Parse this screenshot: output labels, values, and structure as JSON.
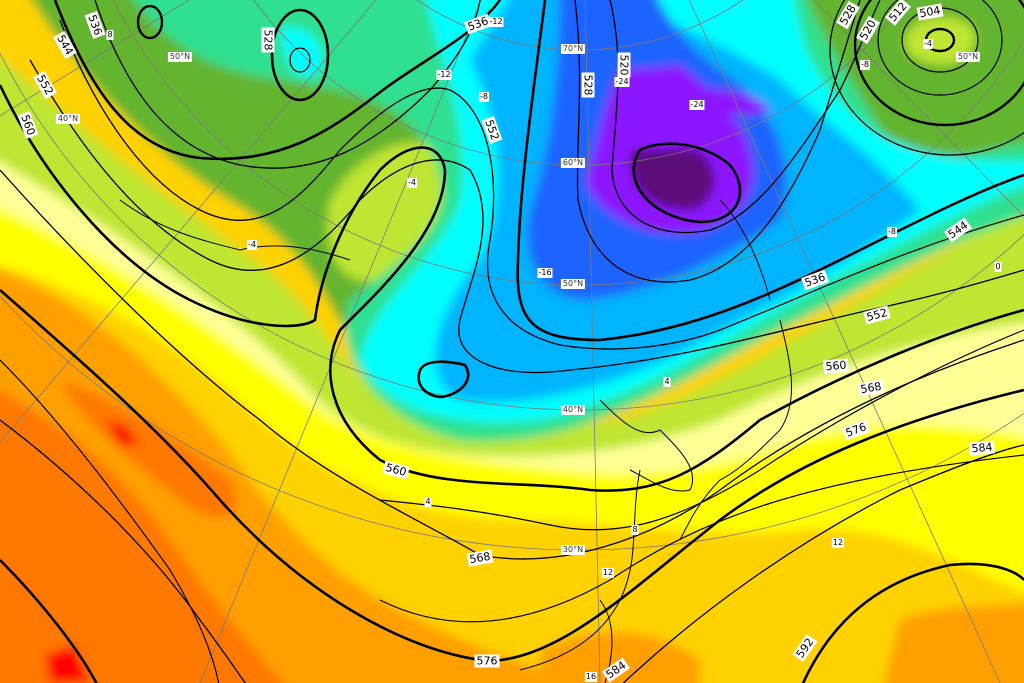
{
  "colors": {
    "dark_purple": "#5c0a78",
    "purple": "#8c14ff",
    "blue": "#1e64ff",
    "light_blue": "#00b4ff",
    "cyan": "#00ffff",
    "sea_green": "#2ee08f",
    "green": "#64b42d",
    "yellow_green": "#bee632",
    "light_yellow": "#ffff96",
    "yellow": "#ffff00",
    "gold": "#ffd200",
    "orange": "#ffa000",
    "dark_orange": "#ff7800",
    "red": "#ff0000",
    "contour": "#000000",
    "graticule": "#7a7a7a"
  },
  "height_labels": [
    "528",
    "536",
    "544",
    "552",
    "560",
    "536",
    "552",
    "528",
    "520",
    "528",
    "520",
    "512",
    "504",
    "544",
    "536",
    "552",
    "560",
    "568",
    "576",
    "584",
    "592",
    "560",
    "568",
    "576",
    "584"
  ],
  "temperature_labels": [
    "-12",
    "-12",
    "-8",
    "-24",
    "-24",
    "-16",
    "4",
    "-8",
    "-4",
    "8",
    "-4",
    "-4",
    "4",
    "8",
    "12",
    "16",
    "-8",
    "0",
    "12"
  ],
  "latitude_labels": [
    "70°N",
    "60°N",
    "50°N",
    "40°N",
    "30°N",
    "50°N",
    "40°N",
    "50°N"
  ]
}
